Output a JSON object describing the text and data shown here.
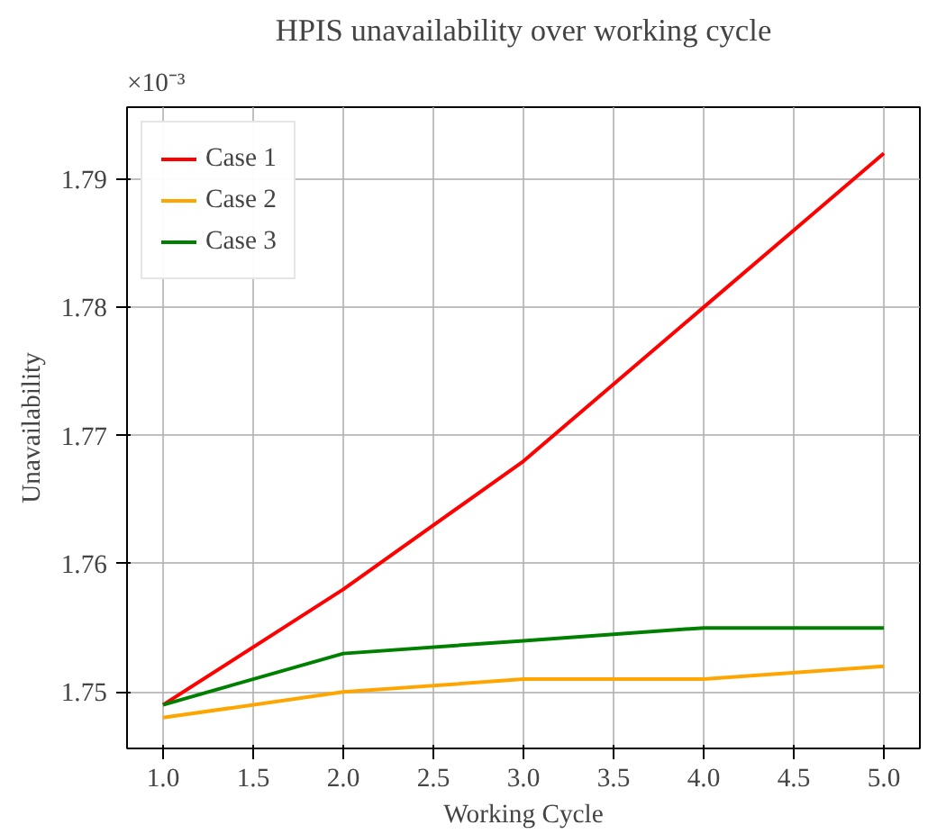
{
  "chart_data": {
    "type": "line",
    "title": "HPIS unavailability over working cycle",
    "xlabel": "Working Cycle",
    "ylabel": "Unavailability",
    "annotations": [
      "×10⁻³"
    ],
    "x": [
      1,
      2,
      3,
      4,
      5
    ],
    "series": [
      {
        "name": "Case 1",
        "color": "#ff0000",
        "values": [
          1.749,
          1.758,
          1.768,
          1.78,
          1.792
        ]
      },
      {
        "name": "Case 2",
        "color": "#ffa500",
        "values": [
          1.748,
          1.75,
          1.751,
          1.751,
          1.752
        ]
      },
      {
        "name": "Case 3",
        "color": "#008000",
        "values": [
          1.749,
          1.753,
          1.754,
          1.755,
          1.755
        ]
      }
    ],
    "xlim": [
      0.8,
      5.2
    ],
    "ylim": [
      1.7456,
      1.7956
    ],
    "xticks": [
      {
        "value": 1,
        "label": "1.0"
      },
      1.5,
      {
        "value": 2,
        "label": "2.0"
      },
      2.5,
      {
        "value": 3,
        "label": "3.0"
      },
      3.5,
      {
        "value": 4,
        "label": "4.0"
      },
      4.5,
      {
        "value": 5,
        "label": "5.0"
      }
    ],
    "yticks": [
      1.75,
      1.76,
      1.77,
      1.78,
      1.79
    ],
    "grid": true,
    "legend": "top left",
    "marker": "none",
    "line_style": "solid"
  }
}
